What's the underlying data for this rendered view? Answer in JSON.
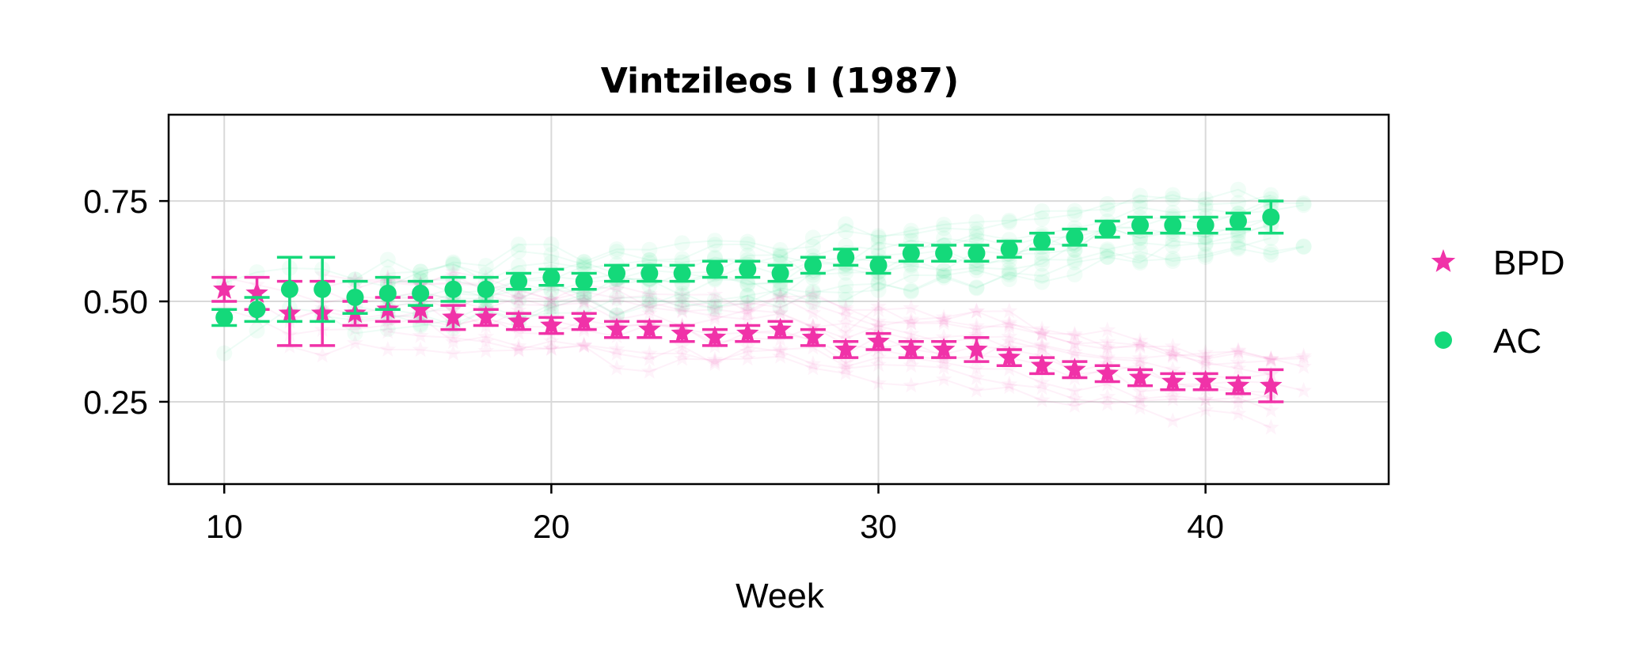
{
  "chart_data": {
    "type": "scatter",
    "title": "Vintzileos I (1987)",
    "xlabel": "Week",
    "ylabel": "",
    "xlim": [
      8.3,
      45.6
    ],
    "ylim": [
      0.045,
      0.965
    ],
    "xticks": [
      10,
      20,
      30,
      40
    ],
    "yticks": [
      0.25,
      0.5,
      0.75
    ],
    "grid": true,
    "legend": {
      "placement": "right",
      "entries": [
        "BPD",
        "AC"
      ]
    },
    "series": [
      {
        "name": "BPD",
        "marker": "star",
        "color": "#f032a8",
        "x": [
          10,
          11,
          12,
          13,
          14,
          15,
          16,
          17,
          18,
          19,
          20,
          21,
          22,
          23,
          24,
          25,
          26,
          27,
          28,
          29,
          30,
          31,
          32,
          33,
          34,
          35,
          36,
          37,
          38,
          39,
          40,
          41,
          42
        ],
        "y": [
          0.53,
          0.52,
          0.47,
          0.47,
          0.47,
          0.48,
          0.48,
          0.46,
          0.46,
          0.45,
          0.44,
          0.45,
          0.43,
          0.43,
          0.42,
          0.41,
          0.42,
          0.43,
          0.41,
          0.38,
          0.4,
          0.38,
          0.38,
          0.38,
          0.36,
          0.34,
          0.33,
          0.32,
          0.31,
          0.3,
          0.3,
          0.29,
          0.29
        ],
        "err": [
          0.03,
          0.04,
          0.08,
          0.08,
          0.03,
          0.03,
          0.03,
          0.03,
          0.02,
          0.02,
          0.02,
          0.02,
          0.02,
          0.02,
          0.02,
          0.02,
          0.02,
          0.02,
          0.02,
          0.02,
          0.02,
          0.02,
          0.02,
          0.03,
          0.02,
          0.02,
          0.02,
          0.02,
          0.02,
          0.02,
          0.02,
          0.02,
          0.04
        ]
      },
      {
        "name": "AC",
        "marker": "circle",
        "color": "#14d97a",
        "x": [
          10,
          11,
          12,
          13,
          14,
          15,
          16,
          17,
          18,
          19,
          20,
          21,
          22,
          23,
          24,
          25,
          26,
          27,
          28,
          29,
          30,
          31,
          32,
          33,
          34,
          35,
          36,
          37,
          38,
          39,
          40,
          41,
          42
        ],
        "y": [
          0.46,
          0.48,
          0.53,
          0.53,
          0.51,
          0.52,
          0.52,
          0.53,
          0.53,
          0.55,
          0.56,
          0.55,
          0.57,
          0.57,
          0.57,
          0.58,
          0.58,
          0.57,
          0.59,
          0.61,
          0.59,
          0.62,
          0.62,
          0.62,
          0.63,
          0.65,
          0.66,
          0.68,
          0.69,
          0.69,
          0.69,
          0.7,
          0.71
        ],
        "err": [
          0.02,
          0.03,
          0.08,
          0.08,
          0.04,
          0.04,
          0.03,
          0.03,
          0.03,
          0.02,
          0.02,
          0.02,
          0.02,
          0.02,
          0.02,
          0.02,
          0.02,
          0.02,
          0.02,
          0.02,
          0.02,
          0.02,
          0.02,
          0.02,
          0.02,
          0.02,
          0.02,
          0.02,
          0.02,
          0.02,
          0.02,
          0.02,
          0.04
        ]
      }
    ]
  }
}
